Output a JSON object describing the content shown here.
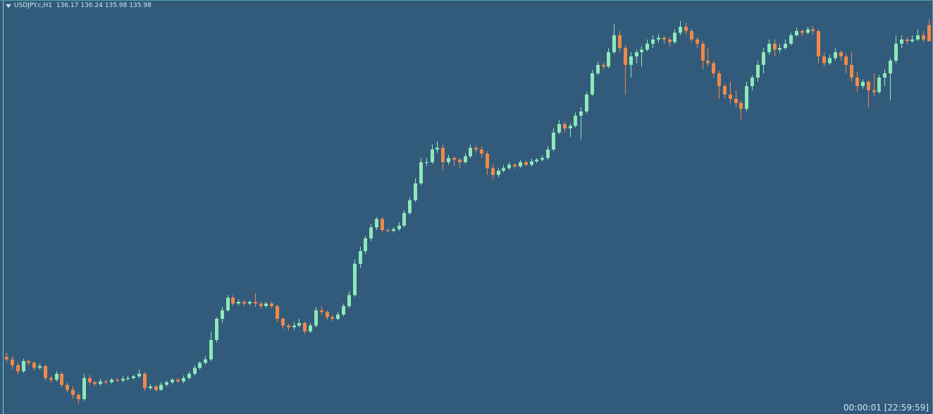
{
  "chart_data": {
    "type": "candlestick",
    "symbol": "USDJPY.c,H1",
    "ohlc": [
      [
        132.25,
        132.3,
        132.18,
        132.22
      ],
      [
        132.22,
        132.26,
        132.1,
        132.15
      ],
      [
        132.15,
        132.18,
        132.04,
        132.08
      ],
      [
        132.08,
        132.23,
        132.06,
        132.2
      ],
      [
        132.2,
        132.22,
        132.15,
        132.18
      ],
      [
        132.18,
        132.2,
        132.09,
        132.12
      ],
      [
        132.12,
        132.17,
        132.1,
        132.14
      ],
      [
        132.14,
        132.16,
        131.97,
        132.0
      ],
      [
        132.0,
        132.03,
        131.95,
        131.98
      ],
      [
        131.98,
        132.08,
        131.96,
        132.05
      ],
      [
        132.05,
        132.07,
        131.89,
        131.92
      ],
      [
        131.92,
        131.95,
        131.83,
        131.86
      ],
      [
        131.86,
        131.9,
        131.76,
        131.8
      ],
      [
        131.8,
        131.83,
        131.7,
        131.75
      ],
      [
        131.75,
        132.05,
        131.73,
        132.0
      ],
      [
        132.0,
        132.04,
        131.92,
        131.95
      ],
      [
        131.95,
        131.97,
        131.9,
        131.93
      ],
      [
        131.93,
        131.99,
        131.91,
        131.96
      ],
      [
        131.96,
        131.98,
        131.92,
        131.95
      ],
      [
        131.95,
        132.0,
        131.93,
        131.98
      ],
      [
        131.98,
        132.0,
        131.95,
        131.97
      ],
      [
        131.97,
        132.02,
        131.95,
        131.99
      ],
      [
        131.99,
        132.03,
        131.97,
        132.0
      ],
      [
        132.0,
        132.04,
        131.98,
        132.02
      ],
      [
        132.02,
        132.1,
        132.0,
        132.05
      ],
      [
        132.05,
        132.07,
        131.85,
        131.88
      ],
      [
        131.88,
        131.93,
        131.86,
        131.9
      ],
      [
        131.9,
        131.92,
        131.84,
        131.86
      ],
      [
        131.86,
        131.95,
        131.85,
        131.92
      ],
      [
        131.92,
        131.97,
        131.9,
        131.95
      ],
      [
        131.95,
        132.0,
        131.93,
        131.98
      ],
      [
        131.98,
        132.0,
        131.94,
        131.96
      ],
      [
        131.96,
        132.03,
        131.94,
        132.0
      ],
      [
        132.0,
        132.08,
        131.98,
        132.05
      ],
      [
        132.05,
        132.15,
        132.03,
        132.12
      ],
      [
        132.12,
        132.2,
        132.1,
        132.18
      ],
      [
        132.18,
        132.26,
        132.16,
        132.22
      ],
      [
        132.22,
        132.55,
        132.2,
        132.45
      ],
      [
        132.45,
        132.72,
        132.42,
        132.7
      ],
      [
        132.7,
        132.84,
        132.65,
        132.8
      ],
      [
        132.8,
        132.98,
        132.78,
        132.95
      ],
      [
        132.95,
        132.98,
        132.85,
        132.88
      ],
      [
        132.88,
        132.93,
        132.86,
        132.9
      ],
      [
        132.9,
        132.92,
        132.85,
        132.88
      ],
      [
        132.88,
        132.92,
        132.86,
        132.9
      ],
      [
        132.9,
        133.0,
        132.84,
        132.88
      ],
      [
        132.88,
        132.9,
        132.82,
        132.85
      ],
      [
        132.85,
        132.9,
        132.83,
        132.88
      ],
      [
        132.88,
        132.9,
        132.82,
        132.85
      ],
      [
        132.85,
        132.87,
        132.66,
        132.7
      ],
      [
        132.7,
        132.72,
        132.58,
        132.62
      ],
      [
        132.62,
        132.64,
        132.56,
        132.6
      ],
      [
        132.6,
        132.66,
        132.57,
        132.62
      ],
      [
        132.62,
        132.7,
        132.6,
        132.65
      ],
      [
        132.65,
        132.67,
        132.52,
        132.55
      ],
      [
        132.55,
        132.65,
        132.53,
        132.62
      ],
      [
        132.62,
        132.84,
        132.6,
        132.8
      ],
      [
        132.8,
        132.85,
        132.75,
        132.78
      ],
      [
        132.78,
        132.8,
        132.69,
        132.72
      ],
      [
        132.72,
        132.74,
        132.67,
        132.7
      ],
      [
        132.7,
        132.78,
        132.68,
        132.75
      ],
      [
        132.75,
        132.88,
        132.73,
        132.85
      ],
      [
        132.85,
        133.02,
        132.83,
        132.98
      ],
      [
        132.98,
        133.4,
        132.96,
        133.35
      ],
      [
        133.35,
        133.55,
        133.3,
        133.5
      ],
      [
        133.5,
        133.68,
        133.47,
        133.65
      ],
      [
        133.65,
        133.82,
        133.62,
        133.78
      ],
      [
        133.78,
        133.9,
        133.75,
        133.88
      ],
      [
        133.88,
        133.9,
        133.72,
        133.75
      ],
      [
        133.75,
        133.77,
        133.72,
        133.74
      ],
      [
        133.74,
        133.78,
        133.72,
        133.76
      ],
      [
        133.76,
        133.84,
        133.74,
        133.8
      ],
      [
        133.8,
        133.98,
        133.78,
        133.95
      ],
      [
        133.95,
        134.14,
        133.93,
        134.1
      ],
      [
        134.1,
        134.36,
        134.08,
        134.3
      ],
      [
        134.3,
        134.6,
        134.28,
        134.55
      ],
      [
        134.55,
        134.6,
        134.5,
        134.55
      ],
      [
        134.55,
        134.76,
        134.53,
        134.7
      ],
      [
        134.7,
        134.8,
        134.66,
        134.72
      ],
      [
        134.72,
        134.76,
        134.45,
        134.55
      ],
      [
        134.55,
        134.64,
        134.52,
        134.6
      ],
      [
        134.6,
        134.62,
        134.5,
        134.58
      ],
      [
        134.58,
        134.6,
        134.48,
        134.55
      ],
      [
        134.55,
        134.66,
        134.53,
        134.62
      ],
      [
        134.62,
        134.76,
        134.6,
        134.72
      ],
      [
        134.72,
        134.75,
        134.66,
        134.7
      ],
      [
        134.7,
        134.74,
        134.6,
        134.65
      ],
      [
        134.65,
        134.68,
        134.4,
        134.48
      ],
      [
        134.48,
        134.52,
        134.35,
        134.4
      ],
      [
        134.4,
        134.48,
        134.37,
        134.45
      ],
      [
        134.45,
        134.52,
        134.43,
        134.48
      ],
      [
        134.48,
        134.55,
        134.46,
        134.52
      ],
      [
        134.52,
        134.54,
        134.47,
        134.5
      ],
      [
        134.5,
        134.58,
        134.48,
        134.55
      ],
      [
        134.55,
        134.57,
        134.5,
        134.52
      ],
      [
        134.52,
        134.59,
        134.5,
        134.56
      ],
      [
        134.56,
        134.6,
        134.54,
        134.58
      ],
      [
        134.58,
        134.63,
        134.56,
        134.6
      ],
      [
        134.6,
        134.74,
        134.58,
        134.7
      ],
      [
        134.7,
        134.95,
        134.68,
        134.9
      ],
      [
        134.9,
        135.05,
        134.88,
        135.0
      ],
      [
        135.0,
        135.03,
        134.9,
        134.95
      ],
      [
        134.95,
        135.01,
        134.85,
        134.98
      ],
      [
        134.98,
        135.14,
        134.96,
        135.1
      ],
      [
        135.1,
        135.2,
        134.82,
        135.15
      ],
      [
        135.15,
        135.38,
        135.13,
        135.35
      ],
      [
        135.35,
        135.64,
        135.33,
        135.6
      ],
      [
        135.6,
        135.74,
        135.58,
        135.7
      ],
      [
        135.7,
        135.73,
        135.64,
        135.68
      ],
      [
        135.68,
        135.9,
        135.66,
        135.85
      ],
      [
        135.85,
        136.18,
        135.83,
        136.05
      ],
      [
        136.05,
        136.1,
        135.85,
        135.9
      ],
      [
        135.9,
        135.93,
        135.35,
        135.7
      ],
      [
        135.7,
        135.85,
        135.55,
        135.8
      ],
      [
        135.8,
        135.88,
        135.72,
        135.85
      ],
      [
        135.85,
        135.92,
        135.68,
        135.88
      ],
      [
        135.88,
        136.0,
        135.86,
        135.95
      ],
      [
        135.95,
        136.05,
        135.9,
        136.0
      ],
      [
        136.0,
        136.06,
        135.96,
        136.02
      ],
      [
        136.02,
        136.04,
        135.95,
        136.0
      ],
      [
        136.0,
        136.03,
        135.92,
        135.97
      ],
      [
        135.97,
        136.12,
        135.95,
        136.08
      ],
      [
        136.08,
        136.22,
        136.05,
        136.15
      ],
      [
        136.15,
        136.2,
        136.06,
        136.1
      ],
      [
        136.1,
        136.13,
        135.96,
        136.0
      ],
      [
        136.0,
        136.03,
        135.9,
        135.95
      ],
      [
        135.95,
        135.98,
        135.65,
        135.75
      ],
      [
        135.75,
        135.9,
        135.68,
        135.72
      ],
      [
        135.72,
        135.75,
        135.55,
        135.6
      ],
      [
        135.6,
        135.63,
        135.3,
        135.45
      ],
      [
        135.45,
        135.48,
        135.3,
        135.35
      ],
      [
        135.35,
        135.5,
        135.25,
        135.3
      ],
      [
        135.3,
        135.4,
        135.2,
        135.25
      ],
      [
        135.25,
        135.28,
        135.05,
        135.18
      ],
      [
        135.18,
        135.5,
        135.15,
        135.45
      ],
      [
        135.45,
        135.58,
        135.4,
        135.55
      ],
      [
        135.55,
        135.75,
        135.5,
        135.7
      ],
      [
        135.7,
        135.9,
        135.6,
        135.85
      ],
      [
        135.85,
        136.0,
        135.82,
        135.95
      ],
      [
        135.95,
        136.0,
        135.8,
        135.88
      ],
      [
        135.88,
        135.95,
        135.84,
        135.9
      ],
      [
        135.9,
        136.0,
        135.88,
        135.95
      ],
      [
        135.95,
        136.08,
        135.93,
        136.05
      ],
      [
        136.05,
        136.14,
        136.03,
        136.1
      ],
      [
        136.1,
        136.12,
        136.04,
        136.08
      ],
      [
        136.08,
        136.15,
        136.06,
        136.12
      ],
      [
        136.12,
        136.16,
        136.06,
        136.1
      ],
      [
        136.1,
        136.12,
        135.72,
        135.8
      ],
      [
        135.8,
        135.85,
        135.68,
        135.72
      ],
      [
        135.72,
        135.82,
        135.7,
        135.78
      ],
      [
        135.78,
        135.9,
        135.75,
        135.85
      ],
      [
        135.85,
        135.87,
        135.75,
        135.8
      ],
      [
        135.8,
        135.83,
        135.6,
        135.7
      ],
      [
        135.7,
        135.85,
        135.5,
        135.55
      ],
      [
        135.55,
        135.62,
        135.38,
        135.45
      ],
      [
        135.45,
        135.53,
        135.42,
        135.5
      ],
      [
        135.5,
        135.52,
        135.2,
        135.4
      ],
      [
        135.4,
        135.6,
        135.33,
        135.38
      ],
      [
        135.38,
        135.58,
        135.36,
        135.55
      ],
      [
        135.55,
        135.65,
        135.45,
        135.6
      ],
      [
        135.6,
        135.78,
        135.28,
        135.75
      ],
      [
        135.75,
        136.05,
        135.72,
        135.95
      ],
      [
        135.95,
        136.05,
        135.9,
        136.0
      ],
      [
        136.0,
        136.03,
        135.94,
        135.98
      ],
      [
        135.98,
        136.05,
        135.96,
        136.0
      ],
      [
        136.0,
        136.12,
        135.98,
        136.05
      ],
      [
        136.05,
        136.1,
        135.97,
        136.0
      ],
      [
        136.17,
        136.24,
        135.98,
        135.98
      ]
    ],
    "ylim": [
      131.575,
      136.35
    ],
    "up_color": "#8ee9b6",
    "down_color": "#f0884a",
    "background": "#325b7b"
  },
  "clock": "00:00:01 [22:59:59]"
}
